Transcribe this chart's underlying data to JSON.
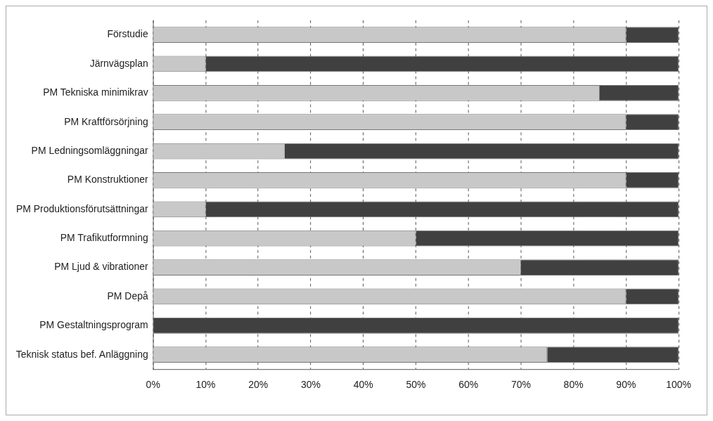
{
  "chart_data": {
    "type": "bar",
    "orientation": "horizontal",
    "stacked": true,
    "categories": [
      "Förstudie",
      "Järnvägsplan",
      "PM Tekniska minimikrav",
      "PM Kraftförsörjning",
      "PM Ledningsomläggningar",
      "PM Konstruktioner",
      "PM Produktionsförutsättningar",
      "PM Trafikutformning",
      "PM Ljud & vibrationer",
      "PM Depå",
      "PM Gestaltningsprogram",
      "Teknisk status bef. Anläggning"
    ],
    "series": [
      {
        "color": "#c8c8c8",
        "values": [
          90,
          10,
          85,
          90,
          25,
          90,
          10,
          50,
          70,
          90,
          0,
          75
        ]
      },
      {
        "color": "#404040",
        "values": [
          10,
          90,
          15,
          10,
          75,
          10,
          90,
          50,
          30,
          10,
          100,
          25
        ]
      }
    ],
    "xlim": [
      0,
      100
    ],
    "xticks": [
      {
        "value": 0,
        "label": "0%"
      },
      {
        "value": 10,
        "label": "10%"
      },
      {
        "value": 20,
        "label": "20%"
      },
      {
        "value": 30,
        "label": "30%"
      },
      {
        "value": 40,
        "label": "40%"
      },
      {
        "value": 50,
        "label": "50%"
      },
      {
        "value": 60,
        "label": "60%"
      },
      {
        "value": 70,
        "label": "70%"
      },
      {
        "value": 80,
        "label": "80%"
      },
      {
        "value": 90,
        "label": "90%"
      },
      {
        "value": 100,
        "label": "100%"
      }
    ],
    "grid": "x",
    "legend": false
  }
}
